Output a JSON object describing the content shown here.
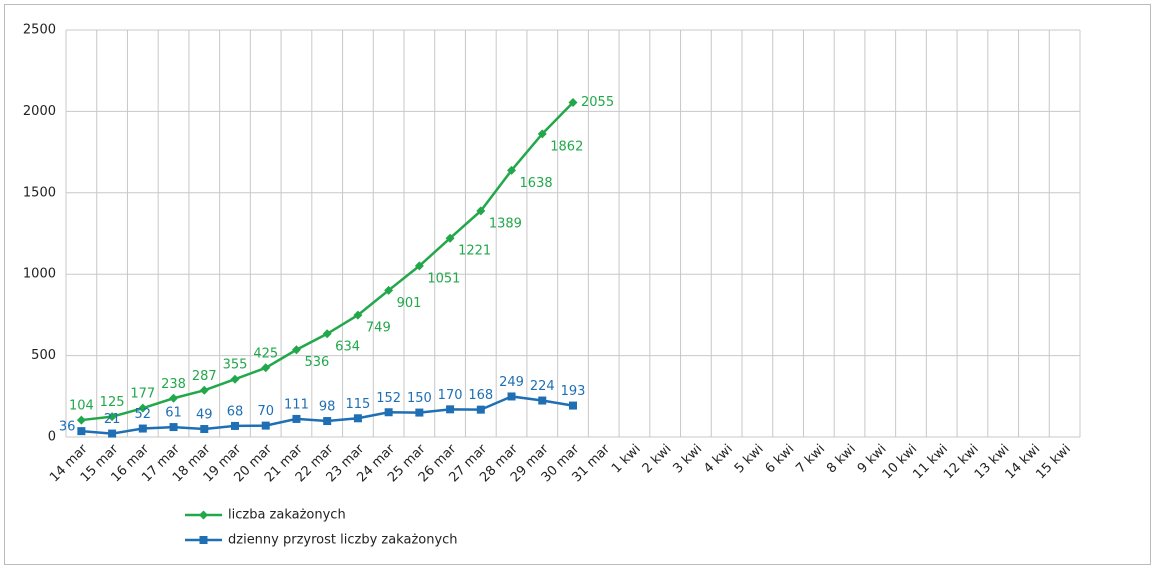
{
  "chart_data": {
    "type": "line",
    "categories": [
      "14 mar",
      "15 mar",
      "16 mar",
      "17 mar",
      "18 mar",
      "19 mar",
      "20 mar",
      "21 mar",
      "22 mar",
      "23 mar",
      "24 mar",
      "25 mar",
      "26 mar",
      "27 mar",
      "28 mar",
      "29 mar",
      "30 mar",
      "31 mar",
      "1 kwi",
      "2 kwi",
      "3 kwi",
      "4 kwi",
      "5 kwi",
      "6 kwi",
      "7 kwi",
      "8 kwi",
      "9 kwi",
      "10 kwi",
      "11 kwi",
      "12 kwi",
      "13 kwi",
      "14 kwi",
      "15 kwi"
    ],
    "series": [
      {
        "name": "liczba zakażonych",
        "color": "#22a84a",
        "marker": "diamond",
        "values": [
          104,
          125,
          177,
          238,
          287,
          355,
          425,
          536,
          634,
          749,
          901,
          1051,
          1221,
          1389,
          1638,
          1862,
          2055,
          null,
          null,
          null,
          null,
          null,
          null,
          null,
          null,
          null,
          null,
          null,
          null,
          null,
          null,
          null,
          null
        ]
      },
      {
        "name": "dzienny przyrost liczby zakażonych",
        "color": "#1f6fb5",
        "marker": "square",
        "values": [
          36,
          21,
          52,
          61,
          49,
          68,
          70,
          111,
          98,
          115,
          152,
          150,
          170,
          168,
          249,
          224,
          193,
          null,
          null,
          null,
          null,
          null,
          null,
          null,
          null,
          null,
          null,
          null,
          null,
          null,
          null,
          null,
          null
        ]
      }
    ],
    "ylim": [
      0,
      2500
    ],
    "yticks": [
      0,
      500,
      1000,
      1500,
      2000,
      2500
    ],
    "grid": true,
    "legend": "bottom"
  }
}
